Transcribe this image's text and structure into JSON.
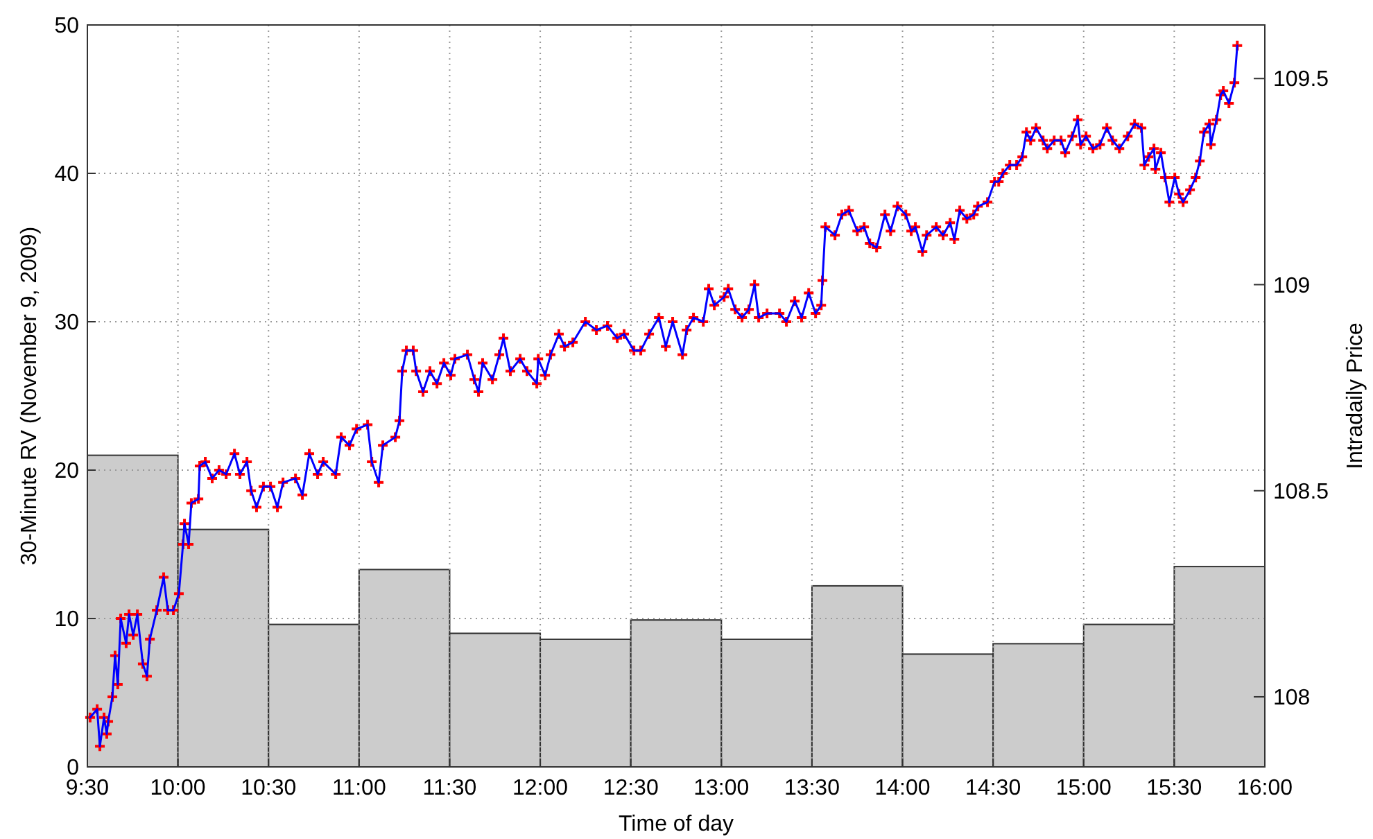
{
  "chart_data": {
    "type": "line",
    "xlabel": "Time of day",
    "ylabel": "30-Minute RV (November 9, 2009)",
    "y2label": "Intradaily Price",
    "xlim": [
      9.5,
      16
    ],
    "xticks": [
      {
        "value": 9.5,
        "label": "9:30"
      },
      {
        "value": 10,
        "label": "10:00"
      },
      {
        "value": 10.5,
        "label": "10:30"
      },
      {
        "value": 11,
        "label": "11:00"
      },
      {
        "value": 11.5,
        "label": "11:30"
      },
      {
        "value": 12,
        "label": "12:00"
      },
      {
        "value": 12.5,
        "label": "12:30"
      },
      {
        "value": 13,
        "label": "13:00"
      },
      {
        "value": 13.5,
        "label": "13:30"
      },
      {
        "value": 14,
        "label": "14:00"
      },
      {
        "value": 14.5,
        "label": "14:30"
      },
      {
        "value": 15,
        "label": "15:00"
      },
      {
        "value": 15.5,
        "label": "15:30"
      },
      {
        "value": 16,
        "label": "16:00"
      }
    ],
    "ylim": [
      0,
      50
    ],
    "yticks": [
      0,
      10,
      20,
      30,
      40,
      50
    ],
    "y2lim": [
      107.83,
      109.63
    ],
    "y2ticks": [
      108,
      108.5,
      109,
      109.5
    ],
    "grid": true,
    "series": [
      {
        "type": "bar",
        "color": "#cccccc",
        "x": [
          9.75,
          10.25,
          10.75,
          11.25,
          11.75,
          12.25,
          12.75,
          13.25,
          13.75,
          14.25,
          14.75,
          15.25,
          15.75
        ],
        "values": [
          21,
          16,
          9.6,
          13.3,
          9,
          8.6,
          9.9,
          8.6,
          12.2,
          7.6,
          8.3,
          9.6,
          13.5
        ]
      },
      {
        "type": "scatter",
        "axis": "y2",
        "color": "#ff0000",
        "marker": "cross",
        "x": [
          9.515,
          9.554,
          9.569,
          9.592,
          9.607,
          9.615,
          9.638,
          9.653,
          9.668,
          9.684,
          9.714,
          9.73,
          9.753,
          9.776,
          9.806,
          9.829,
          9.845,
          9.883,
          9.921,
          9.944,
          9.975,
          10.005,
          10.028,
          10.036,
          10.059,
          10.074,
          10.113,
          10.12,
          10.151,
          10.189,
          10.227,
          10.266,
          10.312,
          10.342,
          10.381,
          10.404,
          10.434,
          10.472,
          10.511,
          10.549,
          10.58,
          10.649,
          10.687,
          10.725,
          10.771,
          10.802,
          10.871,
          10.901,
          10.947,
          10.986,
          11.047,
          11.07,
          11.108,
          11.131,
          11.2,
          11.223,
          11.238,
          11.261,
          11.299,
          11.315,
          11.353,
          11.391,
          11.43,
          11.468,
          11.506,
          11.529,
          11.598,
          11.636,
          11.659,
          11.682,
          11.736,
          11.774,
          11.797,
          11.835,
          11.889,
          11.927,
          11.981,
          11.989,
          12.027,
          12.057,
          12.103,
          12.134,
          12.18,
          12.249,
          12.31,
          12.371,
          12.425,
          12.463,
          12.517,
          12.555,
          12.601,
          12.655,
          12.693,
          12.731,
          12.785,
          12.808,
          12.846,
          12.9,
          12.93,
          12.961,
          13.015,
          13.038,
          13.076,
          13.114,
          13.152,
          13.183,
          13.206,
          13.252,
          13.321,
          13.359,
          13.405,
          13.443,
          13.482,
          13.52,
          13.551,
          13.558,
          13.574,
          13.627,
          13.665,
          13.704,
          13.75,
          13.788,
          13.819,
          13.857,
          13.903,
          13.934,
          13.972,
          14.018,
          14.048,
          14.071,
          14.11,
          14.133,
          14.186,
          14.224,
          14.263,
          14.286,
          14.316,
          14.355,
          14.393,
          14.416,
          14.469,
          14.508,
          14.531,
          14.554,
          14.592,
          14.63,
          14.661,
          14.684,
          14.707,
          14.737,
          14.776,
          14.799,
          14.837,
          14.875,
          14.898,
          14.937,
          14.967,
          14.983,
          15.013,
          15.051,
          15.09,
          15.128,
          15.159,
          15.197,
          15.243,
          15.281,
          15.319,
          15.335,
          15.358,
          15.388,
          15.396,
          15.426,
          15.449,
          15.473,
          15.503,
          15.526,
          15.549,
          15.587,
          15.618,
          15.641,
          15.664,
          15.694,
          15.702,
          15.733,
          15.756,
          15.771,
          15.802,
          15.832,
          15.848
        ],
        "values": [
          107.95,
          107.97,
          107.88,
          107.95,
          107.91,
          107.94,
          108.0,
          108.1,
          108.03,
          108.19,
          108.13,
          108.2,
          108.15,
          108.2,
          108.08,
          108.05,
          108.14,
          108.21,
          108.29,
          108.21,
          108.21,
          108.25,
          108.37,
          108.42,
          108.37,
          108.47,
          108.48,
          108.56,
          108.57,
          108.53,
          108.55,
          108.54,
          108.59,
          108.54,
          108.57,
          108.5,
          108.46,
          108.51,
          108.51,
          108.46,
          108.52,
          108.53,
          108.49,
          108.59,
          108.54,
          108.57,
          108.54,
          108.63,
          108.61,
          108.65,
          108.66,
          108.57,
          108.52,
          108.61,
          108.63,
          108.67,
          108.79,
          108.84,
          108.84,
          108.79,
          108.74,
          108.79,
          108.76,
          108.81,
          108.78,
          108.82,
          108.83,
          108.77,
          108.74,
          108.81,
          108.77,
          108.83,
          108.87,
          108.79,
          108.82,
          108.79,
          108.76,
          108.82,
          108.78,
          108.83,
          108.88,
          108.85,
          108.86,
          108.91,
          108.89,
          108.9,
          108.87,
          108.88,
          108.84,
          108.84,
          108.88,
          108.92,
          108.85,
          108.91,
          108.83,
          108.89,
          108.92,
          108.91,
          108.99,
          108.95,
          108.97,
          108.99,
          108.94,
          108.92,
          108.94,
          109.0,
          108.92,
          108.93,
          108.93,
          108.91,
          108.96,
          108.92,
          108.98,
          108.93,
          108.95,
          109.01,
          109.14,
          109.12,
          109.17,
          109.18,
          109.13,
          109.14,
          109.1,
          109.09,
          109.17,
          109.13,
          109.19,
          109.17,
          109.13,
          109.14,
          109.08,
          109.12,
          109.14,
          109.12,
          109.15,
          109.11,
          109.18,
          109.16,
          109.17,
          109.19,
          109.2,
          109.25,
          109.25,
          109.27,
          109.29,
          109.29,
          109.31,
          109.37,
          109.35,
          109.38,
          109.35,
          109.33,
          109.35,
          109.35,
          109.32,
          109.36,
          109.4,
          109.34,
          109.36,
          109.33,
          109.34,
          109.38,
          109.35,
          109.33,
          109.36,
          109.39,
          109.38,
          109.29,
          109.31,
          109.33,
          109.28,
          109.32,
          109.26,
          109.2,
          109.26,
          109.22,
          109.2,
          109.23,
          109.26,
          109.3,
          109.37,
          109.39,
          109.34,
          109.4,
          109.46,
          109.47,
          109.44,
          109.49,
          109.58
        ]
      },
      {
        "axis": "y2",
        "color": "#0000ff",
        "marker": "none",
        "line_style": "solid",
        "x": [
          9.515,
          9.554,
          9.569,
          9.592,
          9.607,
          9.615,
          9.638,
          9.653,
          9.668,
          9.684,
          9.714,
          9.73,
          9.753,
          9.776,
          9.806,
          9.829,
          9.845,
          9.883,
          9.921,
          9.944,
          9.975,
          10.005,
          10.028,
          10.036,
          10.059,
          10.074,
          10.113,
          10.12,
          10.151,
          10.189,
          10.227,
          10.266,
          10.312,
          10.342,
          10.381,
          10.404,
          10.434,
          10.472,
          10.511,
          10.549,
          10.58,
          10.649,
          10.687,
          10.725,
          10.771,
          10.802,
          10.871,
          10.901,
          10.947,
          10.986,
          11.047,
          11.07,
          11.108,
          11.131,
          11.2,
          11.223,
          11.238,
          11.261,
          11.299,
          11.315,
          11.353,
          11.391,
          11.43,
          11.468,
          11.506,
          11.529,
          11.598,
          11.636,
          11.659,
          11.682,
          11.736,
          11.774,
          11.797,
          11.835,
          11.889,
          11.927,
          11.981,
          11.989,
          12.027,
          12.057,
          12.103,
          12.134,
          12.18,
          12.249,
          12.31,
          12.371,
          12.425,
          12.463,
          12.517,
          12.555,
          12.601,
          12.655,
          12.693,
          12.731,
          12.785,
          12.808,
          12.846,
          12.9,
          12.93,
          12.961,
          13.015,
          13.038,
          13.076,
          13.114,
          13.152,
          13.183,
          13.206,
          13.252,
          13.321,
          13.359,
          13.405,
          13.443,
          13.482,
          13.52,
          13.551,
          13.558,
          13.574,
          13.627,
          13.665,
          13.704,
          13.75,
          13.788,
          13.819,
          13.857,
          13.903,
          13.934,
          13.972,
          14.018,
          14.048,
          14.071,
          14.11,
          14.133,
          14.186,
          14.224,
          14.263,
          14.286,
          14.316,
          14.355,
          14.393,
          14.416,
          14.469,
          14.508,
          14.531,
          14.554,
          14.592,
          14.63,
          14.661,
          14.684,
          14.707,
          14.737,
          14.776,
          14.799,
          14.837,
          14.875,
          14.898,
          14.937,
          14.967,
          14.983,
          15.013,
          15.051,
          15.09,
          15.128,
          15.159,
          15.197,
          15.243,
          15.281,
          15.319,
          15.335,
          15.358,
          15.388,
          15.396,
          15.426,
          15.449,
          15.473,
          15.503,
          15.526,
          15.549,
          15.587,
          15.618,
          15.641,
          15.664,
          15.694,
          15.702,
          15.733,
          15.756,
          15.771,
          15.802,
          15.832,
          15.848
        ],
        "values": [
          107.95,
          107.97,
          107.88,
          107.95,
          107.91,
          107.94,
          108.0,
          108.1,
          108.03,
          108.19,
          108.13,
          108.2,
          108.15,
          108.2,
          108.08,
          108.05,
          108.14,
          108.21,
          108.29,
          108.21,
          108.21,
          108.25,
          108.37,
          108.42,
          108.37,
          108.47,
          108.48,
          108.56,
          108.57,
          108.53,
          108.55,
          108.54,
          108.59,
          108.54,
          108.57,
          108.5,
          108.46,
          108.51,
          108.51,
          108.46,
          108.52,
          108.53,
          108.49,
          108.59,
          108.54,
          108.57,
          108.54,
          108.63,
          108.61,
          108.65,
          108.66,
          108.57,
          108.52,
          108.61,
          108.63,
          108.67,
          108.79,
          108.84,
          108.84,
          108.79,
          108.74,
          108.79,
          108.76,
          108.81,
          108.78,
          108.82,
          108.83,
          108.77,
          108.74,
          108.81,
          108.77,
          108.83,
          108.87,
          108.79,
          108.82,
          108.79,
          108.76,
          108.82,
          108.78,
          108.83,
          108.88,
          108.85,
          108.86,
          108.91,
          108.89,
          108.9,
          108.87,
          108.88,
          108.84,
          108.84,
          108.88,
          108.92,
          108.85,
          108.91,
          108.83,
          108.89,
          108.92,
          108.91,
          108.99,
          108.95,
          108.97,
          108.99,
          108.94,
          108.92,
          108.94,
          109.0,
          108.92,
          108.93,
          108.93,
          108.91,
          108.96,
          108.92,
          108.98,
          108.93,
          108.95,
          109.01,
          109.14,
          109.12,
          109.17,
          109.18,
          109.13,
          109.14,
          109.1,
          109.09,
          109.17,
          109.13,
          109.19,
          109.17,
          109.13,
          109.14,
          109.08,
          109.12,
          109.14,
          109.12,
          109.15,
          109.11,
          109.18,
          109.16,
          109.17,
          109.19,
          109.2,
          109.25,
          109.25,
          109.27,
          109.29,
          109.29,
          109.31,
          109.37,
          109.35,
          109.38,
          109.35,
          109.33,
          109.35,
          109.35,
          109.32,
          109.36,
          109.4,
          109.34,
          109.36,
          109.33,
          109.34,
          109.38,
          109.35,
          109.33,
          109.36,
          109.39,
          109.38,
          109.29,
          109.31,
          109.33,
          109.28,
          109.32,
          109.26,
          109.2,
          109.26,
          109.22,
          109.2,
          109.23,
          109.26,
          109.3,
          109.37,
          109.39,
          109.34,
          109.4,
          109.46,
          109.47,
          109.44,
          109.49,
          109.58
        ]
      }
    ]
  }
}
